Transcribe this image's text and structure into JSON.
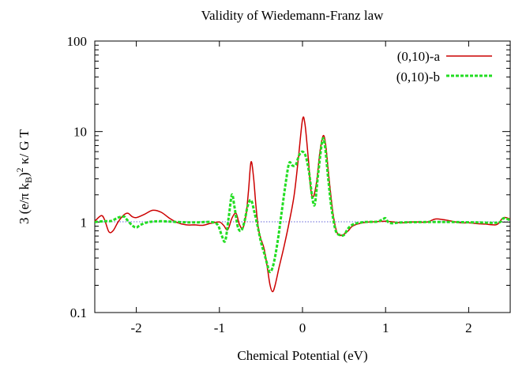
{
  "chart_data": {
    "type": "line",
    "title": "Validity of Wiedemann-Franz law",
    "xlabel": "Chemical Potential (eV)",
    "ylabel": "3 (e/π k_B)² κ/ G T",
    "xlim": [
      -2.5,
      2.5
    ],
    "ylim": [
      0.1,
      100
    ],
    "yscale": "log",
    "xticks": [
      -2,
      -1,
      0,
      1,
      2
    ],
    "xtick_labels": [
      "-2",
      "-1",
      "0",
      "1",
      "2"
    ],
    "yticks": [
      0.1,
      1,
      10,
      100
    ],
    "ytick_labels": [
      "0.1",
      "1",
      "10",
      "100"
    ],
    "grid": false,
    "legend": "top-right",
    "reference_line": {
      "y": 1,
      "style": "dotted",
      "color": "#3333cc"
    },
    "series": [
      {
        "name": "(0,10)-a",
        "color": "#cc0000",
        "style": "solid",
        "points": [
          [
            -2.5,
            1.02
          ],
          [
            -2.42,
            1.18
          ],
          [
            -2.38,
            1.05
          ],
          [
            -2.33,
            0.78
          ],
          [
            -2.28,
            0.8
          ],
          [
            -2.22,
            1.0
          ],
          [
            -2.15,
            1.2
          ],
          [
            -2.1,
            1.25
          ],
          [
            -2.05,
            1.15
          ],
          [
            -2.0,
            1.12
          ],
          [
            -1.9,
            1.22
          ],
          [
            -1.8,
            1.35
          ],
          [
            -1.7,
            1.28
          ],
          [
            -1.6,
            1.1
          ],
          [
            -1.5,
            0.98
          ],
          [
            -1.4,
            0.93
          ],
          [
            -1.3,
            0.93
          ],
          [
            -1.2,
            0.92
          ],
          [
            -1.1,
            0.97
          ],
          [
            -1.0,
            1.0
          ],
          [
            -0.95,
            0.92
          ],
          [
            -0.9,
            0.82
          ],
          [
            -0.85,
            1.1
          ],
          [
            -0.8,
            1.25
          ],
          [
            -0.76,
            0.95
          ],
          [
            -0.72,
            0.85
          ],
          [
            -0.68,
            1.2
          ],
          [
            -0.65,
            2.2
          ],
          [
            -0.62,
            4.6
          ],
          [
            -0.59,
            3.2
          ],
          [
            -0.56,
            1.5
          ],
          [
            -0.53,
            0.85
          ],
          [
            -0.5,
            0.65
          ],
          [
            -0.46,
            0.5
          ],
          [
            -0.42,
            0.3
          ],
          [
            -0.39,
            0.2
          ],
          [
            -0.36,
            0.17
          ],
          [
            -0.33,
            0.2
          ],
          [
            -0.28,
            0.32
          ],
          [
            -0.22,
            0.55
          ],
          [
            -0.16,
            1.0
          ],
          [
            -0.1,
            2.0
          ],
          [
            -0.05,
            5.0
          ],
          [
            0.0,
            13.5
          ],
          [
            0.03,
            12.0
          ],
          [
            0.07,
            5.0
          ],
          [
            0.1,
            2.3
          ],
          [
            0.13,
            1.9
          ],
          [
            0.17,
            2.8
          ],
          [
            0.21,
            6.0
          ],
          [
            0.25,
            9.0
          ],
          [
            0.28,
            7.0
          ],
          [
            0.32,
            3.0
          ],
          [
            0.37,
            1.2
          ],
          [
            0.42,
            0.75
          ],
          [
            0.48,
            0.72
          ],
          [
            0.55,
            0.8
          ],
          [
            0.6,
            0.9
          ],
          [
            0.7,
            0.97
          ],
          [
            0.8,
            1.0
          ],
          [
            0.9,
            1.01
          ],
          [
            1.0,
            1.02
          ],
          [
            1.1,
            1.0
          ],
          [
            1.2,
            0.98
          ],
          [
            1.3,
            1.0
          ],
          [
            1.4,
            1.0
          ],
          [
            1.5,
            1.0
          ],
          [
            1.6,
            1.08
          ],
          [
            1.7,
            1.06
          ],
          [
            1.8,
            1.02
          ],
          [
            1.9,
            0.98
          ],
          [
            2.0,
            0.98
          ],
          [
            2.1,
            0.96
          ],
          [
            2.2,
            0.95
          ],
          [
            2.3,
            0.93
          ],
          [
            2.35,
            0.95
          ],
          [
            2.42,
            1.12
          ],
          [
            2.5,
            1.08
          ]
        ]
      },
      {
        "name": "(0,10)-b",
        "color": "#22dd22",
        "style": "dashed",
        "points": [
          [
            -2.5,
            1.0
          ],
          [
            -2.4,
            1.02
          ],
          [
            -2.3,
            1.03
          ],
          [
            -2.22,
            1.12
          ],
          [
            -2.15,
            1.15
          ],
          [
            -2.12,
            1.08
          ],
          [
            -2.05,
            0.92
          ],
          [
            -2.0,
            0.87
          ],
          [
            -1.95,
            0.93
          ],
          [
            -1.85,
            1.0
          ],
          [
            -1.7,
            1.02
          ],
          [
            -1.5,
            1.0
          ],
          [
            -1.3,
            0.99
          ],
          [
            -1.1,
            1.0
          ],
          [
            -1.02,
            0.93
          ],
          [
            -0.97,
            0.7
          ],
          [
            -0.93,
            0.62
          ],
          [
            -0.89,
            1.1
          ],
          [
            -0.85,
            2.0
          ],
          [
            -0.82,
            1.5
          ],
          [
            -0.78,
            0.9
          ],
          [
            -0.74,
            0.8
          ],
          [
            -0.7,
            1.0
          ],
          [
            -0.66,
            1.5
          ],
          [
            -0.62,
            1.75
          ],
          [
            -0.58,
            1.3
          ],
          [
            -0.54,
            0.9
          ],
          [
            -0.5,
            0.6
          ],
          [
            -0.46,
            0.45
          ],
          [
            -0.42,
            0.33
          ],
          [
            -0.39,
            0.28
          ],
          [
            -0.35,
            0.34
          ],
          [
            -0.3,
            0.6
          ],
          [
            -0.25,
            1.3
          ],
          [
            -0.2,
            2.8
          ],
          [
            -0.16,
            4.5
          ],
          [
            -0.12,
            4.2
          ],
          [
            -0.08,
            4.3
          ],
          [
            -0.04,
            5.5
          ],
          [
            0.0,
            6.0
          ],
          [
            0.04,
            5.3
          ],
          [
            0.08,
            3.5
          ],
          [
            0.12,
            1.8
          ],
          [
            0.15,
            1.6
          ],
          [
            0.19,
            3.5
          ],
          [
            0.24,
            8.0
          ],
          [
            0.27,
            7.0
          ],
          [
            0.31,
            3.0
          ],
          [
            0.35,
            1.4
          ],
          [
            0.4,
            0.8
          ],
          [
            0.45,
            0.72
          ],
          [
            0.5,
            0.72
          ],
          [
            0.55,
            0.85
          ],
          [
            0.62,
            0.95
          ],
          [
            0.75,
            1.0
          ],
          [
            0.9,
            1.01
          ],
          [
            0.97,
            1.08
          ],
          [
            1.0,
            1.1
          ],
          [
            1.03,
            1.0
          ],
          [
            1.08,
            0.97
          ],
          [
            1.2,
            0.99
          ],
          [
            1.5,
            1.0
          ],
          [
            1.8,
            1.0
          ],
          [
            2.1,
            0.99
          ],
          [
            2.3,
            0.98
          ],
          [
            2.38,
            1.0
          ],
          [
            2.42,
            1.1
          ],
          [
            2.5,
            1.05
          ]
        ]
      }
    ]
  }
}
